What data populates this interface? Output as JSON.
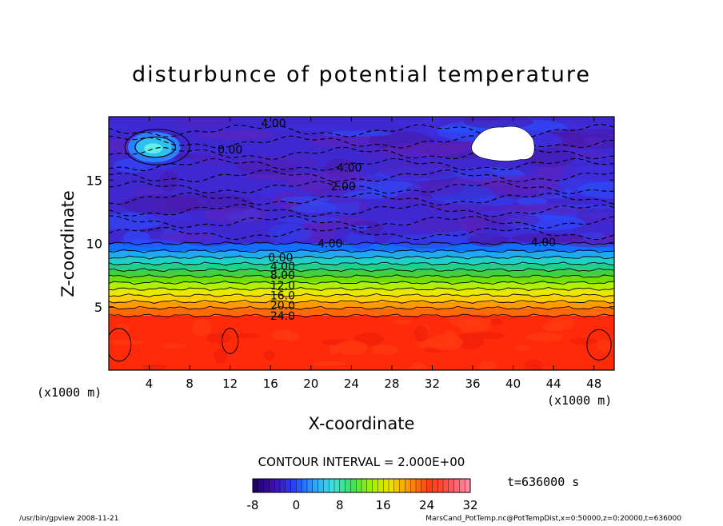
{
  "chart_data": {
    "type": "heatmap",
    "title": "disturbunce of potential temperature",
    "xlabel": "X-coordinate",
    "ylabel": "Z-coordinate",
    "x_unit_left": "(x1000 m)",
    "x_unit_right": "(x1000 m)",
    "xlim": [
      0,
      50
    ],
    "ylim": [
      0,
      20
    ],
    "x_ticks": [
      4,
      8,
      12,
      16,
      20,
      24,
      28,
      32,
      36,
      40,
      44,
      48
    ],
    "y_ticks": [
      5,
      10,
      15
    ],
    "contour_interval_label": "CONTOUR INTERVAL = 2.000E+00",
    "time_label": "t=636000 s",
    "colorbar": {
      "min": -8,
      "max": 32,
      "ticks": [
        -8,
        0,
        8,
        16,
        24,
        32
      ],
      "colors": [
        "#200070",
        "#4010b0",
        "#2a40ff",
        "#2aa0ff",
        "#40e0e0",
        "#40e060",
        "#a0f000",
        "#f0e000",
        "#ff9000",
        "#ff4010",
        "#ff5050",
        "#ff8aa0"
      ]
    },
    "layers": [
      {
        "z0": 0,
        "z1": 4.3,
        "value": 26,
        "color": "#ff2a0a"
      },
      {
        "z0": 4.3,
        "z1": 4.9,
        "value": 24,
        "color": "#ff6a08"
      },
      {
        "z0": 4.9,
        "z1": 5.4,
        "value": 22,
        "color": "#ff9a00"
      },
      {
        "z0": 5.4,
        "z1": 5.9,
        "value": 20,
        "color": "#ffd000"
      },
      {
        "z0": 5.9,
        "z1": 6.4,
        "value": 18,
        "color": "#e8e800"
      },
      {
        "z0": 6.4,
        "z1": 6.9,
        "value": 16,
        "color": "#b0f000"
      },
      {
        "z0": 6.9,
        "z1": 7.4,
        "value": 14,
        "color": "#70e000"
      },
      {
        "z0": 7.4,
        "z1": 7.9,
        "value": 12,
        "color": "#40d040"
      },
      {
        "z0": 7.9,
        "z1": 8.4,
        "value": 10,
        "color": "#20d08a"
      },
      {
        "z0": 8.4,
        "z1": 8.9,
        "value": 8,
        "color": "#20d0c8"
      },
      {
        "z0": 8.9,
        "z1": 9.4,
        "value": 4,
        "color": "#20a8f0"
      },
      {
        "z0": 9.4,
        "z1": 10.0,
        "value": 0,
        "color": "#1070ff"
      },
      {
        "z0": 10.0,
        "z1": 20,
        "value": -4,
        "color": "#4028d0"
      }
    ],
    "contour_labels": [
      {
        "text": "4.00",
        "x": 16.3,
        "z": 19.5
      },
      {
        "text": "0.00",
        "x": 12.0,
        "z": 17.4
      },
      {
        "text": "4.00",
        "x": 23.8,
        "z": 16.0
      },
      {
        "text": "2.00",
        "x": 23.2,
        "z": 14.5
      },
      {
        "text": "4.00",
        "x": 21.9,
        "z": 10.0
      },
      {
        "text": "4.00",
        "x": 43.0,
        "z": 10.1
      },
      {
        "text": "0.00",
        "x": 17.0,
        "z": 8.9
      },
      {
        "text": "4.00",
        "x": 17.2,
        "z": 8.2
      },
      {
        "text": "8.00",
        "x": 17.2,
        "z": 7.5
      },
      {
        "text": "12.0",
        "x": 17.2,
        "z": 6.7
      },
      {
        "text": "16.0",
        "x": 17.2,
        "z": 5.9
      },
      {
        "text": "20.0",
        "x": 17.2,
        "z": 5.1
      },
      {
        "text": "24.0",
        "x": 17.2,
        "z": 4.3
      }
    ],
    "missing_regions": [
      {
        "x": [
          36,
          42
        ],
        "z": [
          16.5,
          19.3
        ]
      }
    ]
  },
  "footer": {
    "left": "/usr/bin/gpview   2008-11-21",
    "right": "MarsCand_PotTemp.nc@PotTempDist,x=0:50000,z=0:20000,t=636000"
  }
}
